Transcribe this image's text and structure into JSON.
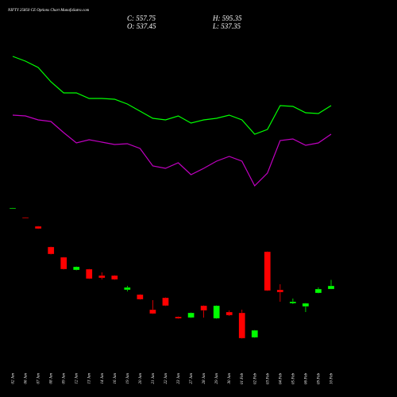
{
  "chart_data": {
    "type": "candlestick",
    "title": "NIFTY 25850 CE Options Chart MunafaSutra.com",
    "ohlc_labels": {
      "close": "C: 557.75",
      "high": "H: 595.35",
      "open": "O: 537.45",
      "low": "L: 537.35"
    },
    "categories": [
      "02 Jan",
      "06 Jan",
      "07 Jan",
      "08 Jan",
      "09 Jan",
      "12 Jan",
      "13 Jan",
      "14 Jan",
      "16 Jan",
      "19 Jan",
      "20 Jan",
      "21 Jan",
      "22 Jan",
      "23 Jan",
      "27 Jan",
      "28 Jan",
      "29 Jan",
      "30 Jan",
      "01 Feb",
      "02 Feb",
      "03 Feb",
      "04 Feb",
      "05 Feb",
      "06 Feb",
      "09 Feb",
      "10 Feb"
    ],
    "open": [
      1046,
      989,
      932.75,
      802.75,
      737.75,
      657.75,
      662.75,
      622.75,
      622.75,
      532.75,
      502.75,
      407.75,
      482.75,
      362.75,
      357.75,
      432.75,
      352.75,
      392.75,
      387.75,
      232.75,
      772.75,
      532.75,
      447.75,
      427.75,
      512.75,
      537.45
    ],
    "high": [
      1049,
      990,
      935,
      805,
      740,
      680,
      665,
      642.75,
      625,
      557.75,
      505,
      467.75,
      485,
      365,
      390,
      435,
      435,
      402.75,
      407.75,
      280,
      775,
      567.75,
      477.75,
      450,
      547.75,
      595.35
    ],
    "low": [
      1045,
      985,
      915,
      755,
      660,
      655,
      600,
      597.75,
      595,
      522.75,
      470,
      380,
      430,
      350,
      355,
      357.75,
      350,
      367.75,
      225,
      230,
      525,
      457.75,
      442.75,
      392.75,
      510,
      537.35
    ],
    "close": [
      1048,
      986,
      917.75,
      757.75,
      662.75,
      677.75,
      602.75,
      607.75,
      597.75,
      547.75,
      472.75,
      382.75,
      432.75,
      352.75,
      387.75,
      402.75,
      432.75,
      372.75,
      227.75,
      277.75,
      527.75,
      517.75,
      457.75,
      447.75,
      537.75,
      557.75
    ],
    "up_color": "#00ff00",
    "down_color": "#ff0000",
    "ylim": [
      200,
      1100
    ],
    "y2lim": [
      0,
      500
    ],
    "series": [
      {
        "color": "#00ff00",
        "axis": "y2",
        "values": [
          429,
          423,
          415,
          397,
          383,
          383,
          376,
          376,
          375,
          369,
          360,
          351,
          349,
          354,
          345,
          349,
          351,
          355,
          349,
          331,
          337,
          367,
          366,
          358,
          357,
          367
        ]
      },
      {
        "color": "#c000c0",
        "axis": "y2",
        "values": [
          355,
          354,
          349,
          347,
          333,
          320,
          324,
          321,
          318,
          319,
          313,
          291,
          288,
          295,
          280,
          288,
          297,
          303,
          297,
          266,
          282,
          323,
          325,
          317,
          320,
          331
        ]
      }
    ]
  }
}
